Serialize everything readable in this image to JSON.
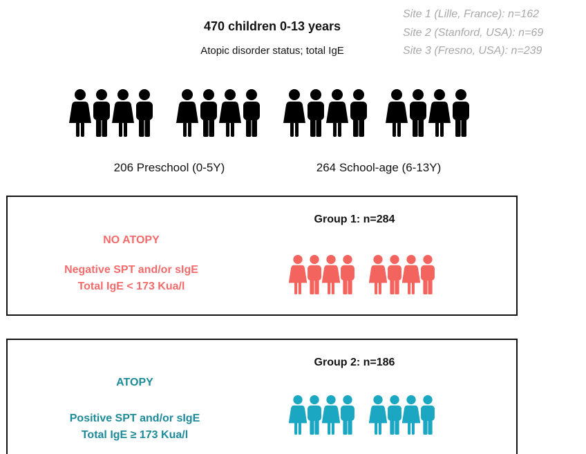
{
  "header": {
    "title": "470 children 0-13 years",
    "subtitle": "Atopic disorder status; total IgE",
    "sites": [
      "Site 1 (Lille, France): n=162",
      "Site 2 (Stanford, USA): n=69",
      "Site 3 (Fresno, USA): n=239"
    ]
  },
  "age_groups": [
    "206 Preschool (0-5Y)",
    "264 School-age (6-13Y)"
  ],
  "groups": [
    {
      "title": "Group 1: n=284",
      "label": "NO ATOPY",
      "criteria": [
        "Negative SPT and/or sIgE",
        "Total IgE < 173 Kua/l"
      ]
    },
    {
      "title": "Group 2: n=186",
      "label": "ATOPY",
      "criteria": [
        "Positive SPT and/or sIgE",
        "Total IgE ≥ 173 Kua/l"
      ]
    }
  ]
}
